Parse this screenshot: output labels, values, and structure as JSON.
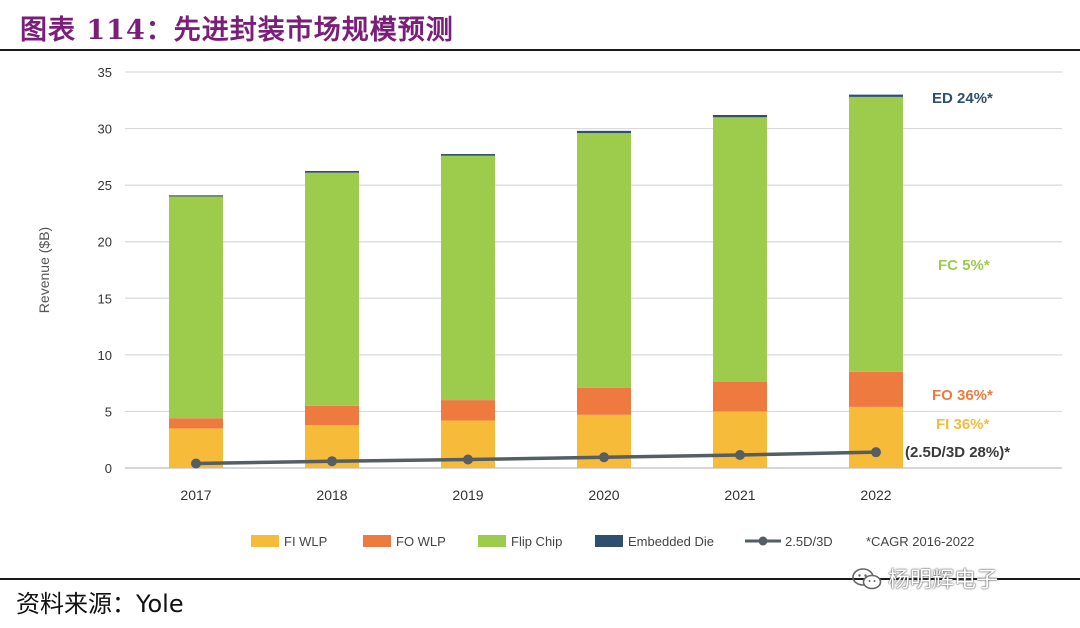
{
  "header": {
    "title": "图表 114：先进封装市场规模预测"
  },
  "chart_data": {
    "type": "bar",
    "stacked": true,
    "categories": [
      "2017",
      "2018",
      "2019",
      "2020",
      "2021",
      "2022"
    ],
    "series": [
      {
        "name": "FI WLP",
        "color": "#f7bb3a",
        "values": [
          3.5,
          3.8,
          4.2,
          4.7,
          5.0,
          5.4
        ]
      },
      {
        "name": "FO WLP",
        "color": "#ef7a40",
        "values": [
          0.9,
          1.7,
          1.8,
          2.4,
          2.6,
          3.1
        ]
      },
      {
        "name": "Flip Chip",
        "color": "#9dcb4b",
        "values": [
          19.6,
          20.6,
          21.6,
          22.5,
          23.4,
          24.3
        ]
      },
      {
        "name": "Embedded Die",
        "color": "#2f4f6f",
        "values": [
          0.1,
          0.15,
          0.15,
          0.2,
          0.2,
          0.2
        ]
      }
    ],
    "line_series": {
      "name": "2.5D/3D",
      "color": "#555e63",
      "values": [
        0.4,
        0.6,
        0.75,
        0.95,
        1.15,
        1.4
      ]
    },
    "legend_note": "*CAGR 2016-2022",
    "ylabel": "Revenue ($B)",
    "xlabel": "",
    "ylim": [
      0,
      35
    ],
    "yticks": [
      0,
      5,
      10,
      15,
      20,
      25,
      30,
      35
    ],
    "grid": true,
    "annotations": [
      {
        "text": "ED 24%*",
        "color": "#2f4f6f",
        "anchor_series": "Embedded Die"
      },
      {
        "text": "FC 5%*",
        "color": "#9dcb4b",
        "anchor_series": "Flip Chip"
      },
      {
        "text": "FO 36%*",
        "color": "#ef7a40",
        "anchor_series": "FO WLP"
      },
      {
        "text": "FI 36%*",
        "color": "#f7bb3a",
        "anchor_series": "FI WLP"
      },
      {
        "text": "(2.5D/3D 28%)*",
        "color": "#3a3a3a",
        "anchor_series": "2.5D/3D"
      }
    ]
  },
  "footer": {
    "source": "资料来源：Yole",
    "watermark": "杨明辉电子",
    "watermark_icon": "wechat-icon"
  }
}
